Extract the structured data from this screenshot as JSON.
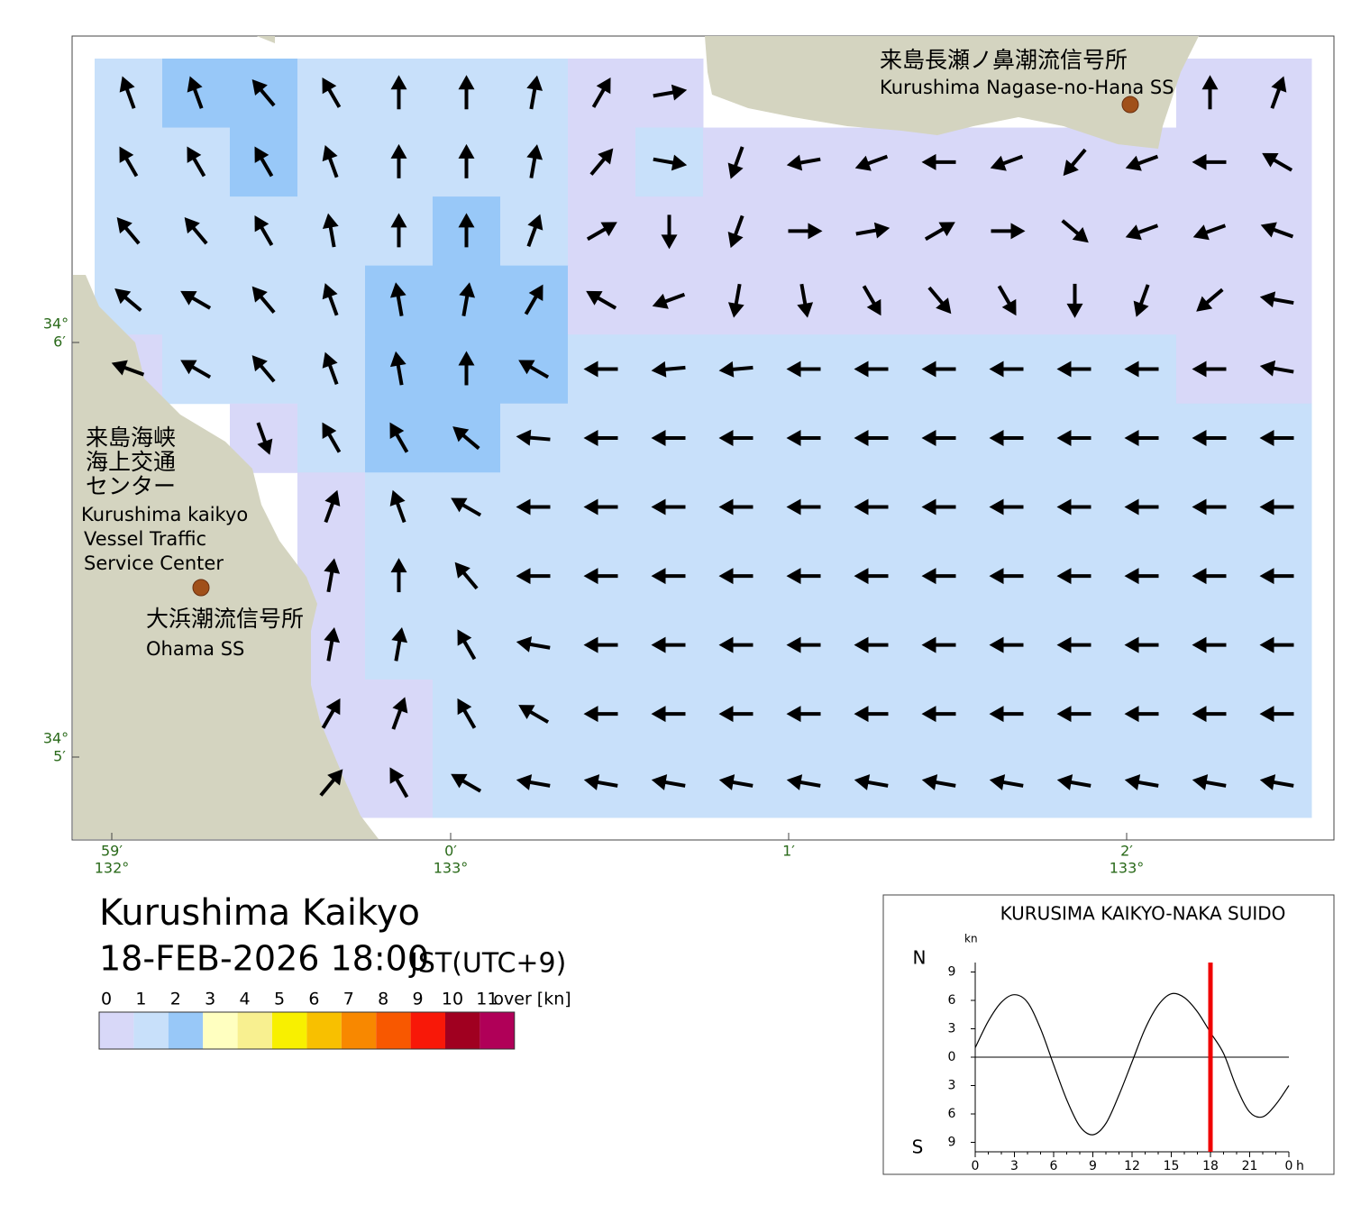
{
  "title": "Kurushima Kaikyo",
  "datetime": "18-FEB-2026 18:00",
  "timezone": "JST(UTC+9)",
  "colorbar": {
    "ticks": [
      0,
      1,
      2,
      3,
      4,
      5,
      6,
      7,
      8,
      9,
      10,
      11
    ],
    "unit": "over [kn]",
    "colors": [
      "#d8d8f8",
      "#c8e0fa",
      "#98c8f8",
      "#ffffc0",
      "#f8f090",
      "#f8f000",
      "#f8c000",
      "#f88800",
      "#f85800",
      "#f81808",
      "#a00020",
      "#b00058"
    ]
  },
  "map": {
    "lat_labels": [
      {
        "deg": "34°",
        "min": "6′"
      },
      {
        "deg": "34°",
        "min": "5′"
      }
    ],
    "lon_labels": [
      {
        "min": "59′",
        "deg": "132°"
      },
      {
        "min": "0′",
        "deg": "133°"
      },
      {
        "min": "1′"
      },
      {
        "min": "2′",
        "deg": "133°"
      }
    ],
    "places": [
      {
        "ja": [
          "来島長瀬ノ鼻潮流信号所"
        ],
        "en": [
          "Kurushima Nagase-no-Hana SS"
        ]
      },
      {
        "ja": [
          "来島海峡",
          "海上交通",
          "センター"
        ],
        "en": [
          "Kurushima kaikyo",
          "Vessel Traffic",
          "Service Center"
        ]
      },
      {
        "ja": [
          "大浜潮流信号所"
        ],
        "en": [
          "Ohama SS"
        ]
      }
    ],
    "current": {
      "direction_deg": [
        [
          340,
          340,
          320,
          330,
          0,
          0,
          10,
          30,
          80,
          null,
          null,
          null,
          null,
          null,
          null,
          null,
          0,
          20
        ],
        [
          330,
          330,
          330,
          340,
          0,
          0,
          10,
          40,
          100,
          200,
          260,
          250,
          270,
          250,
          220,
          250,
          270,
          300
        ],
        [
          320,
          320,
          330,
          350,
          0,
          0,
          20,
          60,
          180,
          200,
          90,
          80,
          60,
          90,
          130,
          250,
          250,
          290
        ],
        [
          310,
          300,
          320,
          340,
          350,
          10,
          30,
          300,
          250,
          190,
          170,
          150,
          140,
          150,
          180,
          200,
          230,
          280
        ],
        [
          290,
          300,
          320,
          340,
          350,
          0,
          300,
          270,
          265,
          265,
          270,
          270,
          270,
          270,
          270,
          270,
          270,
          280
        ],
        [
          null,
          null,
          160,
          330,
          330,
          310,
          275,
          270,
          270,
          270,
          270,
          270,
          270,
          270,
          270,
          270,
          270,
          270
        ],
        [
          null,
          null,
          null,
          20,
          340,
          300,
          270,
          270,
          270,
          270,
          270,
          270,
          270,
          270,
          270,
          270,
          270,
          270
        ],
        [
          null,
          null,
          null,
          10,
          0,
          320,
          270,
          270,
          270,
          270,
          270,
          270,
          270,
          270,
          270,
          270,
          270,
          270
        ],
        [
          null,
          null,
          null,
          10,
          10,
          330,
          280,
          270,
          270,
          270,
          270,
          270,
          270,
          270,
          270,
          270,
          270,
          270
        ],
        [
          null,
          null,
          null,
          30,
          20,
          330,
          300,
          270,
          270,
          270,
          270,
          270,
          270,
          270,
          270,
          270,
          270,
          270
        ],
        [
          null,
          null,
          null,
          40,
          330,
          300,
          280,
          280,
          280,
          280,
          280,
          280,
          280,
          280,
          280,
          280,
          280,
          280
        ]
      ],
      "speed_kn": [
        [
          1.6,
          2.4,
          2.6,
          1.2,
          1.4,
          1.2,
          1.0,
          0.8,
          0.4,
          null,
          null,
          null,
          null,
          null,
          null,
          null,
          0.4,
          0.4
        ],
        [
          1.4,
          1.6,
          2.2,
          1.2,
          1.6,
          1.6,
          1.2,
          0.8,
          1.4,
          0.6,
          0.4,
          0.4,
          0.4,
          0.4,
          0.4,
          0.6,
          0.6,
          0.4
        ],
        [
          1.2,
          1.2,
          1.4,
          1.4,
          1.8,
          2.4,
          1.6,
          0.6,
          0.4,
          0.6,
          0.4,
          0.4,
          0.6,
          0.4,
          0.4,
          0.4,
          0.4,
          0.4
        ],
        [
          1.0,
          1.2,
          1.2,
          1.2,
          2.2,
          2.8,
          2.4,
          0.8,
          0.6,
          0.4,
          0.4,
          0.4,
          0.4,
          0.4,
          0.4,
          0.4,
          0.4,
          0.4
        ],
        [
          0.6,
          1.0,
          1.2,
          1.6,
          2.4,
          2.6,
          2.2,
          1.2,
          1.2,
          1.2,
          1.2,
          1.2,
          1.2,
          1.2,
          1.0,
          1.0,
          0.8,
          0.6
        ],
        [
          null,
          null,
          0.6,
          1.4,
          2.2,
          2.4,
          1.6,
          1.4,
          1.4,
          1.4,
          1.4,
          1.4,
          1.4,
          1.4,
          1.4,
          1.2,
          1.2,
          1.0
        ],
        [
          null,
          null,
          null,
          0.8,
          1.4,
          1.6,
          1.4,
          1.4,
          1.4,
          1.4,
          1.4,
          1.4,
          1.4,
          1.4,
          1.4,
          1.4,
          1.4,
          1.0
        ],
        [
          null,
          null,
          null,
          0.6,
          1.2,
          1.4,
          1.4,
          1.4,
          1.4,
          1.4,
          1.4,
          1.4,
          1.4,
          1.4,
          1.4,
          1.4,
          1.4,
          1.2
        ],
        [
          null,
          null,
          null,
          0.6,
          1.0,
          1.2,
          1.4,
          1.4,
          1.4,
          1.4,
          1.4,
          1.4,
          1.4,
          1.4,
          1.4,
          1.4,
          1.4,
          1.2
        ],
        [
          null,
          null,
          null,
          0.6,
          0.8,
          1.0,
          1.2,
          1.4,
          1.4,
          1.4,
          1.4,
          1.4,
          1.4,
          1.4,
          1.4,
          1.4,
          1.4,
          1.2
        ],
        [
          null,
          null,
          null,
          0.6,
          0.8,
          1.0,
          1.2,
          1.4,
          1.4,
          1.4,
          1.4,
          1.4,
          1.4,
          1.4,
          1.4,
          1.4,
          1.4,
          1.2
        ]
      ]
    }
  },
  "chart_data": {
    "type": "line",
    "title": "KURUSIMA KAIKYO-NAKA SUIDO",
    "y_unit": "kn",
    "north_label": "N",
    "south_label": "S",
    "x_unit": "h",
    "x": [
      0,
      1,
      2,
      3,
      4,
      5,
      6,
      7,
      8,
      9,
      10,
      11,
      12,
      13,
      14,
      15,
      16,
      17,
      18,
      19,
      20,
      21,
      22,
      23,
      24
    ],
    "values": [
      1.0,
      3.8,
      5.8,
      6.6,
      5.8,
      3.0,
      -0.8,
      -4.5,
      -7.3,
      -8.2,
      -7.0,
      -4.0,
      -0.5,
      3.0,
      5.5,
      6.7,
      6.3,
      4.8,
      2.6,
      0.4,
      -3.2,
      -5.8,
      -6.3,
      -5.0,
      -3.0
    ],
    "color": "#000000",
    "marker_x": 18,
    "marker_color": "#f00000",
    "xlim": [
      0,
      24
    ],
    "ylim": [
      -10,
      10
    ],
    "xticks": [
      0,
      3,
      6,
      9,
      12,
      15,
      18,
      21,
      {
        "value": 24,
        "label": "0"
      }
    ],
    "yticks": [
      9,
      6,
      3,
      0,
      {
        "value": -3,
        "label": "3"
      },
      {
        "value": -6,
        "label": "6"
      },
      {
        "value": -9,
        "label": "9"
      }
    ]
  }
}
